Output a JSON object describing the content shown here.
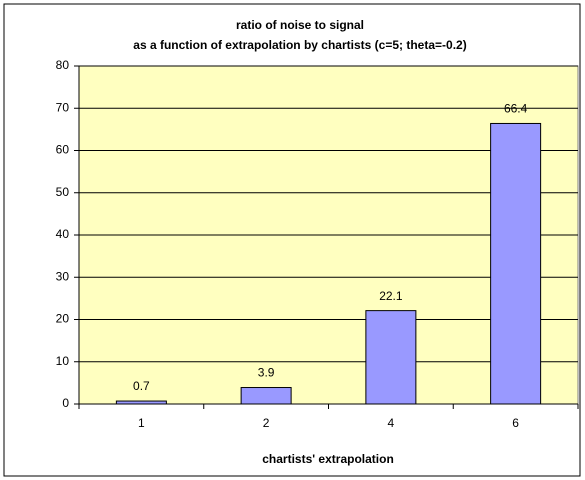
{
  "chart_data": {
    "type": "bar",
    "title": [
      "ratio of noise to signal",
      "as a function of extrapolation by chartists (c=5; theta=-0.2)"
    ],
    "x_label": "chartists' extrapolation",
    "categories": [
      "1",
      "2",
      "4",
      "6"
    ],
    "values": [
      0.7,
      3.9,
      22.1,
      66.4
    ],
    "color": "#9999ff",
    "plot_background": "#ffffc0",
    "ylim": [
      0,
      80
    ],
    "yticks": [
      0,
      10,
      20,
      30,
      40,
      50,
      60,
      70,
      80
    ],
    "grid": true
  }
}
